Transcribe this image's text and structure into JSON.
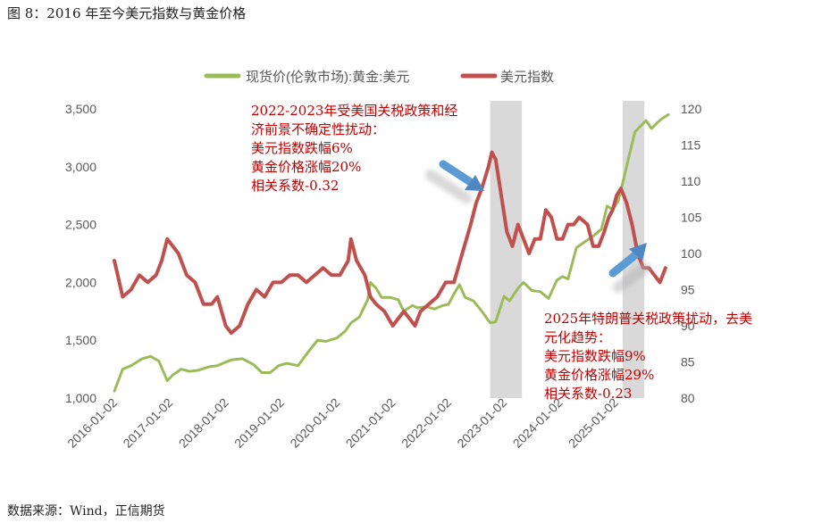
{
  "figure": {
    "title": "图 8：2016 年至今美元指数与黄金价格",
    "source": "数据来源：Wind，正信期货"
  },
  "chart_data": {
    "type": "line",
    "x_tick_labels": [
      "2016-01-02",
      "2017-01-02",
      "2018-01-02",
      "2019-01-02",
      "2020-01-02",
      "2021-01-02",
      "2022-01-02",
      "2023-01-02",
      "2024-01-02",
      "2025-01-02"
    ],
    "y_left": {
      "ylim": [
        1000,
        3500
      ],
      "ticks": [
        "1,000",
        "1,500",
        "2,000",
        "2,500",
        "3,000",
        "3,500"
      ]
    },
    "y_right": {
      "ylim": [
        80,
        120
      ],
      "ticks": [
        "80",
        "85",
        "90",
        "95",
        "100",
        "105",
        "110",
        "115",
        "120"
      ]
    },
    "legend_position": "top",
    "x_range": [
      2016.0,
      2025.95
    ],
    "shaded_periods": [
      [
        2022.75,
        2023.32
      ],
      [
        2025.13,
        2025.52
      ]
    ],
    "series": [
      {
        "name": "现货价(伦敦市场):黄金:美元",
        "axis": "left",
        "color": "#9bbb59",
        "x": [
          2016.0,
          2016.15,
          2016.3,
          2016.5,
          2016.65,
          2016.8,
          2016.95,
          2017.05,
          2017.2,
          2017.35,
          2017.5,
          2017.7,
          2017.85,
          2018.0,
          2018.1,
          2018.3,
          2018.5,
          2018.65,
          2018.8,
          2018.95,
          2019.1,
          2019.3,
          2019.5,
          2019.65,
          2019.8,
          2020.0,
          2020.15,
          2020.25,
          2020.4,
          2020.55,
          2020.6,
          2020.7,
          2020.8,
          2020.95,
          2021.1,
          2021.2,
          2021.35,
          2021.45,
          2021.6,
          2021.75,
          2021.9,
          2022.0,
          2022.1,
          2022.2,
          2022.3,
          2022.45,
          2022.6,
          2022.75,
          2022.85,
          2023.0,
          2023.1,
          2023.25,
          2023.35,
          2023.5,
          2023.65,
          2023.8,
          2023.95,
          2024.05,
          2024.15,
          2024.3,
          2024.45,
          2024.6,
          2024.75,
          2024.85,
          2024.95,
          2025.05,
          2025.15,
          2025.25,
          2025.35,
          2025.45,
          2025.55,
          2025.65,
          2025.75,
          2025.85,
          2025.95
        ],
        "y": [
          1060,
          1250,
          1280,
          1340,
          1360,
          1320,
          1150,
          1200,
          1250,
          1230,
          1240,
          1270,
          1280,
          1310,
          1330,
          1340,
          1290,
          1220,
          1220,
          1280,
          1300,
          1280,
          1410,
          1500,
          1490,
          1520,
          1580,
          1650,
          1700,
          1850,
          2000,
          1950,
          1870,
          1870,
          1850,
          1750,
          1800,
          1780,
          1790,
          1770,
          1800,
          1810,
          1900,
          1980,
          1870,
          1840,
          1750,
          1650,
          1660,
          1880,
          1840,
          1950,
          2000,
          1930,
          1920,
          1860,
          2020,
          2050,
          2030,
          2300,
          2350,
          2400,
          2460,
          2660,
          2630,
          2700,
          2900,
          3100,
          3300,
          3350,
          3400,
          3330,
          3380,
          3420,
          3450
        ]
      },
      {
        "name": "美元指数",
        "axis": "right",
        "color": "#c0504d",
        "x": [
          2016.0,
          2016.15,
          2016.3,
          2016.45,
          2016.6,
          2016.75,
          2016.85,
          2016.95,
          2017.05,
          2017.15,
          2017.3,
          2017.45,
          2017.6,
          2017.75,
          2017.85,
          2018.0,
          2018.1,
          2018.25,
          2018.4,
          2018.55,
          2018.7,
          2018.85,
          2019.0,
          2019.15,
          2019.3,
          2019.45,
          2019.6,
          2019.75,
          2019.9,
          2020.05,
          2020.2,
          2020.25,
          2020.35,
          2020.5,
          2020.6,
          2020.7,
          2020.85,
          2021.0,
          2021.1,
          2021.2,
          2021.3,
          2021.4,
          2021.5,
          2021.65,
          2021.8,
          2021.95,
          2022.1,
          2022.25,
          2022.4,
          2022.5,
          2022.6,
          2022.72,
          2022.78,
          2022.85,
          2022.95,
          2023.05,
          2023.15,
          2023.25,
          2023.35,
          2023.45,
          2023.55,
          2023.65,
          2023.75,
          2023.85,
          2023.95,
          2024.05,
          2024.15,
          2024.25,
          2024.35,
          2024.5,
          2024.6,
          2024.7,
          2024.8,
          2024.88,
          2024.95,
          2025.02,
          2025.1,
          2025.2,
          2025.3,
          2025.4,
          2025.5,
          2025.6,
          2025.7,
          2025.8,
          2025.9
        ],
        "y": [
          99,
          94,
          95,
          97,
          96,
          97,
          99,
          102,
          101,
          100,
          97,
          96,
          93,
          93,
          94,
          90,
          89,
          90,
          93,
          95,
          94,
          96,
          96,
          97,
          97,
          96,
          97,
          98,
          97,
          97,
          99,
          102,
          99,
          97,
          94,
          93,
          92,
          90,
          91,
          92,
          91,
          90,
          92,
          93,
          94,
          96,
          96,
          100,
          104,
          107,
          109,
          112,
          114,
          113,
          108,
          103,
          101,
          104,
          102,
          100,
          102,
          102,
          106,
          105,
          102,
          102,
          104,
          104,
          105,
          104,
          101,
          101,
          103,
          105,
          106,
          108,
          109,
          107,
          104,
          100,
          98,
          98,
          97,
          96,
          98
        ]
      }
    ],
    "annotations": [
      {
        "lines": [
          "2022-2023年受美国关税政策和经",
          "济前景不确定性扰动：",
          "美元指数跌幅6%",
          "黄金价格涨幅20%",
          "相关系数-0.32"
        ]
      },
      {
        "lines": [
          "2025年特朗普关税政策扰动，去美",
          "元化趋势：",
          "美元指数跌幅9%",
          "黄金价格涨幅29%",
          "相关系数-0.23"
        ]
      }
    ]
  }
}
